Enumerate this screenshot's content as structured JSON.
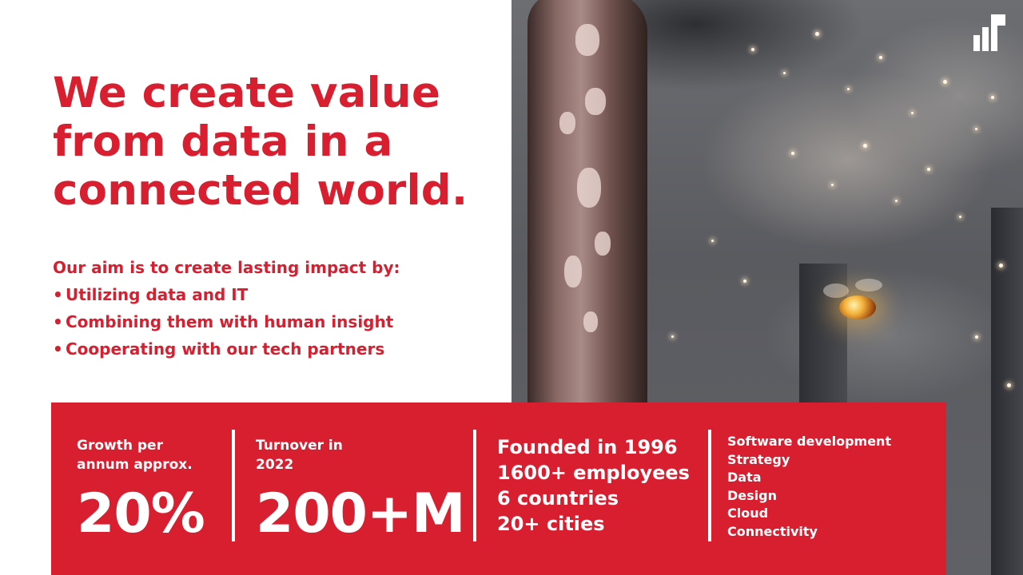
{
  "headline": [
    "We create value",
    "from data in a",
    "connected world."
  ],
  "aim": {
    "intro": "Our aim is to create lasting impact by:",
    "bullets": [
      "Utilizing data and IT",
      "Combining them with human insight",
      "Cooperating with our tech partners"
    ]
  },
  "stats": {
    "growth": {
      "label_line1": "Growth per",
      "label_line2": "annum approx.",
      "value": "20%"
    },
    "turnover": {
      "label_line1": "Turnover in",
      "label_line2": "2022",
      "value": "200+M"
    },
    "facts": [
      "Founded in 1996",
      "1600+ employees",
      "6 countries",
      "20+ cities"
    ],
    "services": [
      "Software development",
      "Strategy",
      "Data",
      "Design",
      "Cloud",
      "Connectivity"
    ]
  },
  "colors": {
    "brand_red": "#d71f30",
    "white": "#ffffff"
  },
  "icons": {
    "logo": "brand-logo-icon",
    "bullet": "bullet-dot-icon"
  }
}
